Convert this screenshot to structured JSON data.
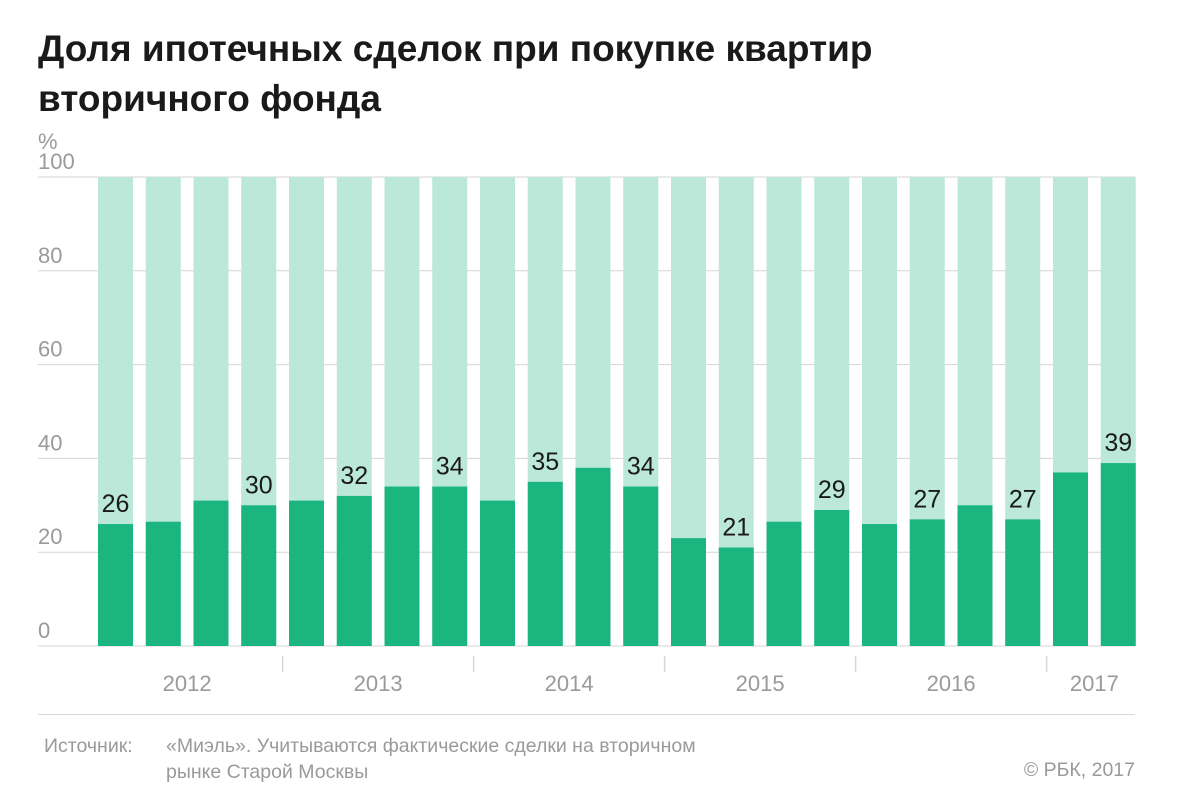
{
  "title_lines": [
    "Доля ипотечных сделок при покупке квартир",
    "вторичного фонда"
  ],
  "source": {
    "label": "Источник:",
    "line1": "«Миэль». Учитываются фактические сделки на вторичном",
    "line2": "рынке Старой Москвы"
  },
  "copyright": "© РБК, 2017",
  "colors": {
    "bar": "#1bb57f",
    "bar_background": "#bbe8d9",
    "grid": "#d6d6d6",
    "axis_text": "#9a9a9a",
    "value_text": "#1a1a1a"
  },
  "chart_data": {
    "type": "bar",
    "ylabel": "%",
    "ylim": [
      0,
      100
    ],
    "yticks": [
      0,
      20,
      40,
      60,
      80,
      100
    ],
    "stacked_to_100": true,
    "years": [
      {
        "label": "2012",
        "bar_count": 4
      },
      {
        "label": "2013",
        "bar_count": 4
      },
      {
        "label": "2014",
        "bar_count": 4
      },
      {
        "label": "2015",
        "bar_count": 4
      },
      {
        "label": "2016",
        "bar_count": 4
      },
      {
        "label": "2017",
        "bar_count": 2
      }
    ],
    "values": [
      26,
      26.5,
      31,
      30,
      31,
      32,
      34,
      34,
      31,
      35,
      38,
      34,
      23,
      21,
      26.5,
      29,
      26,
      27,
      30,
      27,
      37,
      39
    ],
    "data_labels": [
      "26",
      "",
      "",
      "30",
      "",
      "32",
      "",
      "34",
      "",
      "35",
      "",
      "34",
      "",
      "21",
      "",
      "29",
      "",
      "27",
      "",
      "27",
      "",
      "39"
    ]
  }
}
